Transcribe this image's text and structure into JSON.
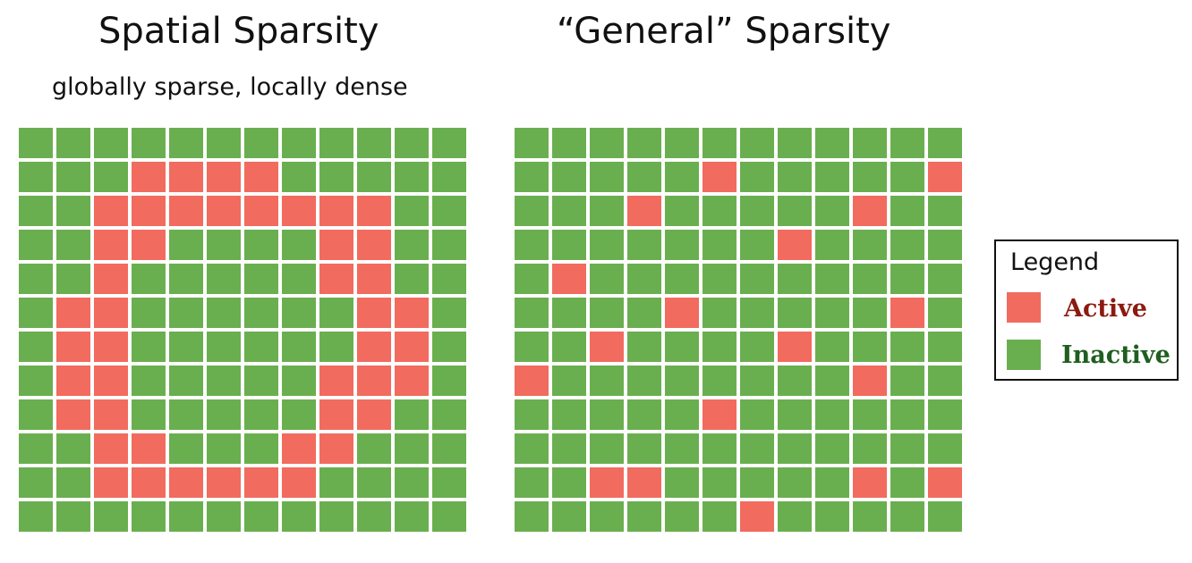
{
  "left_panel": {
    "title": "Spatial Sparsity",
    "subtitle": "globally sparse, locally dense",
    "grid": [
      "000000000000",
      "000111100000",
      "001111111100",
      "001100001100",
      "001000001100",
      "011000000110",
      "011000000110",
      "011000001110",
      "011000001100",
      "001100011000",
      "001111110000",
      "000000000000"
    ]
  },
  "right_panel": {
    "title": "“General” Sparsity",
    "grid": [
      "000000000000",
      "000001000001",
      "000100000100",
      "000000010000",
      "010000000000",
      "000010000010",
      "001000010000",
      "100000000100",
      "000001000000",
      "000000000000",
      "001100000101",
      "000000100000"
    ]
  },
  "legend": {
    "title": "Legend",
    "active_label": "Active",
    "inactive_label": "Inactive"
  },
  "colors": {
    "active": "#f26b5f",
    "inactive": "#6aaf4f",
    "active_text": "#8b1a10",
    "inactive_text": "#1f5e1f"
  }
}
